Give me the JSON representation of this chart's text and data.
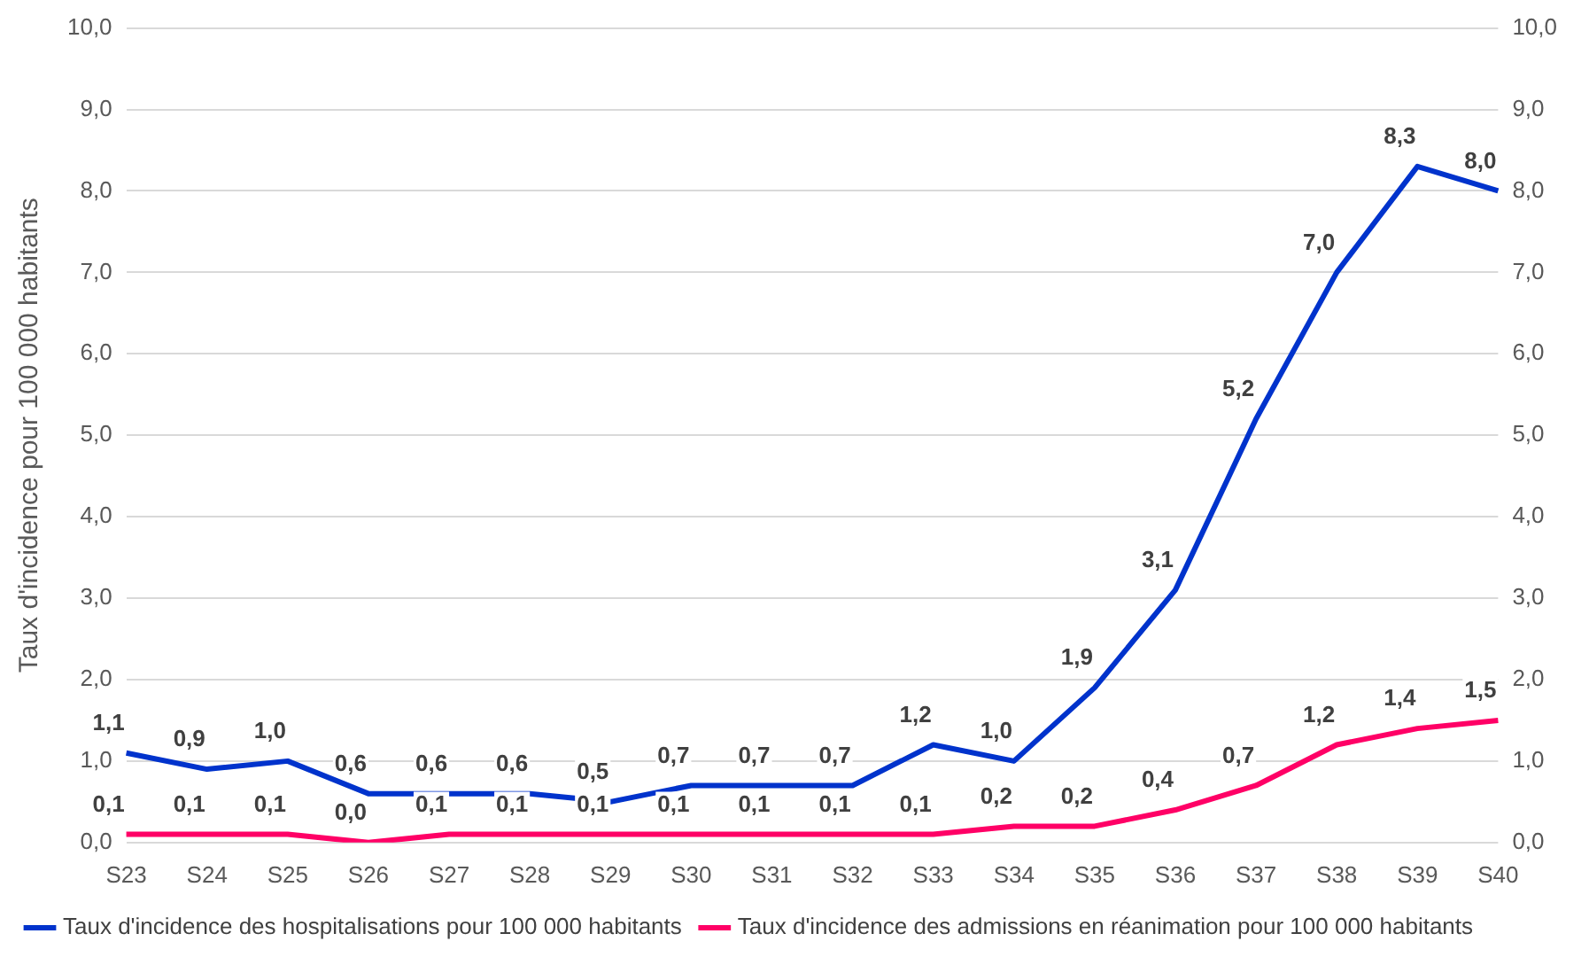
{
  "chart_data": {
    "type": "line",
    "ylabel": "Taux d'incidence pour 100 000 habitants",
    "categories": [
      "S23",
      "S24",
      "S25",
      "S26",
      "S27",
      "S28",
      "S29",
      "S30",
      "S31",
      "S32",
      "S33",
      "S34",
      "S35",
      "S36",
      "S37",
      "S38",
      "S39",
      "S40"
    ],
    "series": [
      {
        "name": "Taux d'incidence des hospitalisations pour 100 000 habitants",
        "color": "#0033cc",
        "values": [
          1.1,
          0.9,
          1.0,
          0.6,
          0.6,
          0.6,
          0.5,
          0.7,
          0.7,
          0.7,
          1.2,
          1.0,
          1.9,
          3.1,
          5.2,
          7.0,
          8.3,
          8.0
        ],
        "value_labels": [
          "1,1",
          "0,9",
          "1,0",
          "0,6",
          "0,6",
          "0,6",
          "0,5",
          "0,7",
          "0,7",
          "0,7",
          "1,2",
          "1,0",
          "1,9",
          "3,1",
          "5,2",
          "7,0",
          "8,3",
          "8,0"
        ]
      },
      {
        "name": "Taux d'incidence des admissions en réanimation pour 100 000 habitants",
        "color": "#ff0066",
        "values": [
          0.1,
          0.1,
          0.1,
          0.0,
          0.1,
          0.1,
          0.1,
          0.1,
          0.1,
          0.1,
          0.1,
          0.2,
          0.2,
          0.4,
          0.7,
          1.2,
          1.4,
          1.5
        ],
        "value_labels": [
          "0,1",
          "0,1",
          "0,1",
          "0,0",
          "0,1",
          "0,1",
          "0,1",
          "0,1",
          "0,1",
          "0,1",
          "0,1",
          "0,2",
          "0,2",
          "0,4",
          "0,7",
          "1,2",
          "1,4",
          "1,5"
        ]
      }
    ],
    "ylim": [
      0,
      10
    ],
    "yticks": [
      {
        "value": 0,
        "label": "0,0"
      },
      {
        "value": 1,
        "label": "1,0"
      },
      {
        "value": 2,
        "label": "2,0"
      },
      {
        "value": 3,
        "label": "3,0"
      },
      {
        "value": 4,
        "label": "4,0"
      },
      {
        "value": 5,
        "label": "5,0"
      },
      {
        "value": 6,
        "label": "6,0"
      },
      {
        "value": 7,
        "label": "7,0"
      },
      {
        "value": 8,
        "label": "8,0"
      },
      {
        "value": 9,
        "label": "9,0"
      },
      {
        "value": 10,
        "label": "10,0"
      }
    ],
    "y2lim": [
      0,
      10
    ],
    "y2ticks": [
      {
        "value": 0,
        "label": "0,0"
      },
      {
        "value": 1,
        "label": "1,0"
      },
      {
        "value": 2,
        "label": "2,0"
      },
      {
        "value": 3,
        "label": "3,0"
      },
      {
        "value": 4,
        "label": "4,0"
      },
      {
        "value": 5,
        "label": "5,0"
      },
      {
        "value": 6,
        "label": "6,0"
      },
      {
        "value": 7,
        "label": "7,0"
      },
      {
        "value": 8,
        "label": "8,0"
      },
      {
        "value": 9,
        "label": "9,0"
      },
      {
        "value": 10,
        "label": "10,0"
      }
    ],
    "grid": "y",
    "legend": "bottom",
    "marker": "none",
    "line_style": "solid"
  }
}
